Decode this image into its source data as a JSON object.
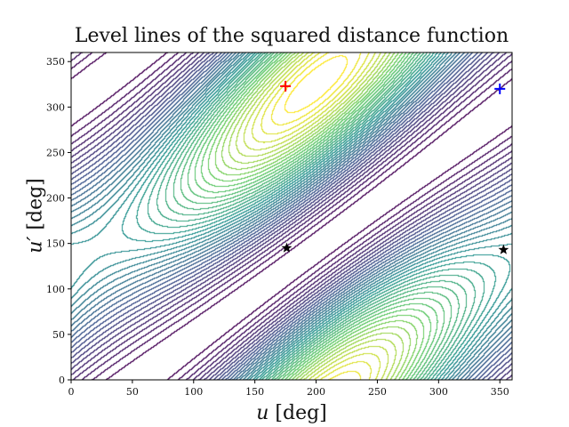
{
  "chart_data": {
    "type": "contour",
    "title": "Level lines of the squared distance function",
    "xlabel_var": "u",
    "xlabel_unit": "[deg]",
    "ylabel_var": "u′",
    "ylabel_unit": "[deg]",
    "xlim": [
      0,
      360
    ],
    "ylim": [
      0,
      360
    ],
    "xticks": [
      "0",
      "50",
      "100",
      "150",
      "200",
      "250",
      "300",
      "350"
    ],
    "yticks": [
      "0",
      "50",
      "100",
      "150",
      "200",
      "250",
      "300",
      "350"
    ],
    "colormap": "viridis",
    "grid": false,
    "markers": [
      {
        "kind": "plus",
        "color": "#ff0000",
        "x": 175,
        "y": 323
      },
      {
        "kind": "plus",
        "color": "#0000ff",
        "x": 350,
        "y": 320
      },
      {
        "kind": "star",
        "color": "#000000",
        "x": 176,
        "y": 145
      },
      {
        "kind": "star",
        "color": "#000000",
        "x": 353,
        "y": 143
      }
    ]
  }
}
